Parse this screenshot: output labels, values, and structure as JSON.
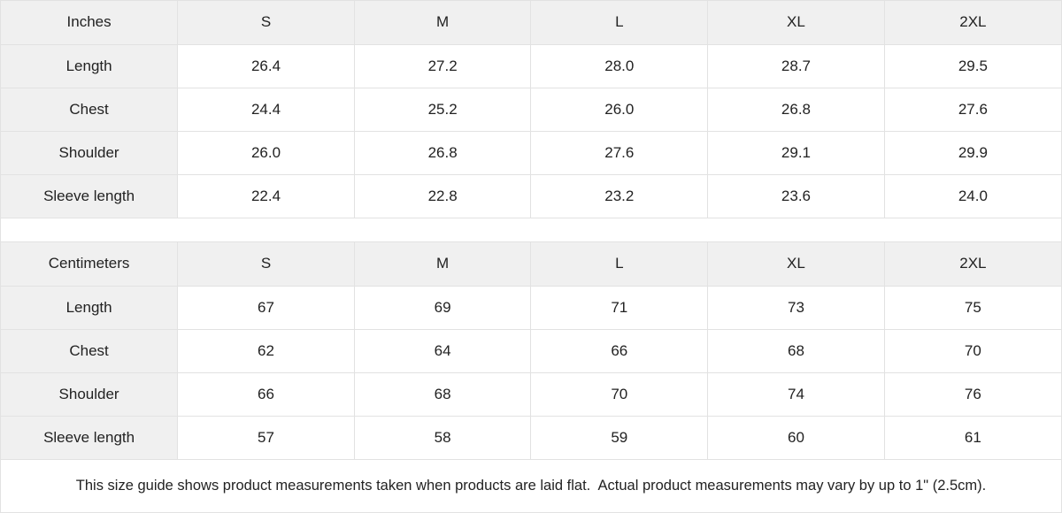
{
  "colors": {
    "header_bg": "#f0f0f0",
    "border": "#e2e2e2",
    "text": "#222222",
    "cell_bg": "#ffffff"
  },
  "tables": [
    {
      "unit_label": "Inches",
      "sizes": [
        "S",
        "M",
        "L",
        "XL",
        "2XL"
      ],
      "rows": [
        {
          "label": "Length",
          "values": [
            "26.4",
            "27.2",
            "28.0",
            "28.7",
            "29.5"
          ]
        },
        {
          "label": "Chest",
          "values": [
            "24.4",
            "25.2",
            "26.0",
            "26.8",
            "27.6"
          ]
        },
        {
          "label": "Shoulder",
          "values": [
            "26.0",
            "26.8",
            "27.6",
            "29.1",
            "29.9"
          ]
        },
        {
          "label": "Sleeve length",
          "values": [
            "22.4",
            "22.8",
            "23.2",
            "23.6",
            "24.0"
          ]
        }
      ]
    },
    {
      "unit_label": "Centimeters",
      "sizes": [
        "S",
        "M",
        "L",
        "XL",
        "2XL"
      ],
      "rows": [
        {
          "label": "Length",
          "values": [
            "67",
            "69",
            "71",
            "73",
            "75"
          ]
        },
        {
          "label": "Chest",
          "values": [
            "62",
            "64",
            "66",
            "68",
            "70"
          ]
        },
        {
          "label": "Shoulder",
          "values": [
            "66",
            "68",
            "70",
            "74",
            "76"
          ]
        },
        {
          "label": "Sleeve length",
          "values": [
            "57",
            "58",
            "59",
            "60",
            "61"
          ]
        }
      ]
    }
  ],
  "footer": {
    "note": "This size guide shows product measurements taken when products are laid flat.  Actual product measurements may vary by up to 1\" (2.5cm)."
  }
}
